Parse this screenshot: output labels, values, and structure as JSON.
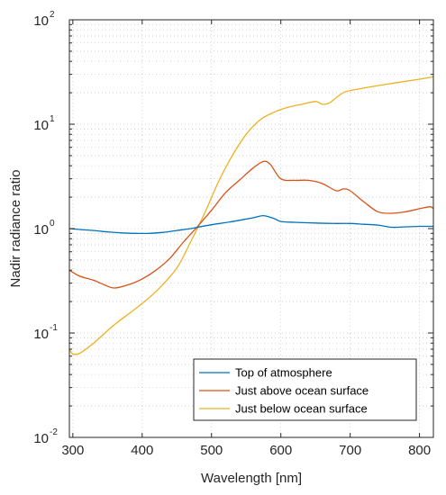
{
  "chart_data": {
    "type": "line",
    "xlabel": "Wavelength [nm]",
    "ylabel": "Nadir radiance ratio",
    "xlim": [
      295,
      820
    ],
    "ylim": [
      0.01,
      100
    ],
    "yscale": "log",
    "grid": true,
    "legend_position": "bottom-right",
    "x_ticks": [
      {
        "value": 300,
        "label": "300"
      },
      {
        "value": 400,
        "label": "400"
      },
      {
        "value": 500,
        "label": "500"
      },
      {
        "value": 600,
        "label": "600"
      },
      {
        "value": 700,
        "label": "700"
      },
      {
        "value": 800,
        "label": "800"
      }
    ],
    "y_ticks": [
      {
        "value": 0.01,
        "mantissa": "10",
        "exponent": "-2"
      },
      {
        "value": 0.1,
        "mantissa": "10",
        "exponent": "-1"
      },
      {
        "value": 1,
        "mantissa": "10",
        "exponent": "0"
      },
      {
        "value": 10,
        "mantissa": "10",
        "exponent": "1"
      },
      {
        "value": 100,
        "mantissa": "10",
        "exponent": "2"
      }
    ],
    "series": [
      {
        "name": "Top of atmosphere",
        "color": "#0072BD",
        "x": [
          295,
          310,
          330,
          350,
          370,
          390,
          410,
          430,
          450,
          470,
          480,
          500,
          520,
          540,
          560,
          575,
          590,
          600,
          620,
          650,
          680,
          700,
          720,
          740,
          760,
          780,
          800,
          820
        ],
        "y": [
          1.0,
          0.98,
          0.96,
          0.93,
          0.91,
          0.9,
          0.9,
          0.92,
          0.96,
          1.0,
          1.03,
          1.09,
          1.14,
          1.2,
          1.27,
          1.33,
          1.25,
          1.17,
          1.15,
          1.13,
          1.12,
          1.12,
          1.1,
          1.08,
          1.03,
          1.04,
          1.05,
          1.05
        ]
      },
      {
        "name": "Just above ocean surface",
        "color": "#D95319",
        "x": [
          295,
          310,
          330,
          345,
          360,
          380,
          400,
          420,
          440,
          460,
          480,
          500,
          520,
          540,
          560,
          575,
          585,
          600,
          620,
          640,
          660,
          680,
          690,
          700,
          720,
          740,
          760,
          780,
          800,
          815,
          820
        ],
        "y": [
          0.4,
          0.35,
          0.32,
          0.29,
          0.27,
          0.29,
          0.33,
          0.4,
          0.52,
          0.75,
          1.05,
          1.5,
          2.2,
          2.9,
          3.8,
          4.4,
          4.1,
          3.0,
          2.9,
          2.9,
          2.7,
          2.3,
          2.4,
          2.3,
          1.8,
          1.45,
          1.4,
          1.45,
          1.55,
          1.62,
          1.55
        ]
      },
      {
        "name": "Just below ocean surface",
        "color": "#EDB120",
        "x": [
          295,
          300,
          310,
          330,
          360,
          390,
          420,
          450,
          470,
          490,
          510,
          530,
          550,
          570,
          590,
          610,
          630,
          650,
          660,
          670,
          680,
          690,
          700,
          750,
          800,
          820
        ],
        "y": [
          0.07,
          0.063,
          0.064,
          0.08,
          0.12,
          0.17,
          0.25,
          0.42,
          0.75,
          1.4,
          2.8,
          5.0,
          8.0,
          11.0,
          13.0,
          14.5,
          15.5,
          16.5,
          15.5,
          16.0,
          18.0,
          20.0,
          21.0,
          24.0,
          27.0,
          28.5
        ]
      }
    ]
  }
}
